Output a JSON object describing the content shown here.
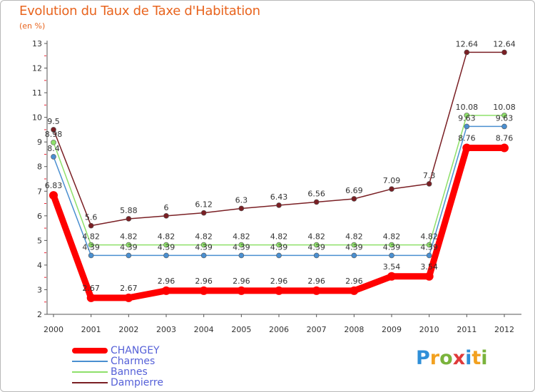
{
  "header": {
    "title": "Evolution du Taux de Taxe d'Habitation",
    "subtitle": "(en %)"
  },
  "logo": {
    "letters": [
      "P",
      "r",
      "o",
      "x",
      "i",
      "t",
      "i"
    ],
    "colors": [
      "#2f8fd8",
      "#f2a120",
      "#7ab33c",
      "#e03a3a",
      "#2f8fd8",
      "#f2a120",
      "#7ab33c"
    ]
  },
  "chart_data": {
    "type": "line",
    "title": "Evolution du Taux de Taxe d'Habitation",
    "ylabel": "(en %)",
    "xlabel": "",
    "x": [
      "2000",
      "2001",
      "2002",
      "2003",
      "2004",
      "2005",
      "2006",
      "2007",
      "2008",
      "2009",
      "2010",
      "2011",
      "2012"
    ],
    "ylim": [
      2,
      13
    ],
    "yticks": [
      "2",
      "3",
      "4",
      "5",
      "6",
      "7",
      "8",
      "9",
      "10",
      "11",
      "12",
      "13"
    ],
    "grid": false,
    "legend_position": "bottom-left",
    "series": [
      {
        "name": "Dampierre",
        "color": "#7a1f24",
        "values": [
          9.5,
          5.6,
          5.88,
          6,
          6.12,
          6.3,
          6.43,
          6.56,
          6.69,
          7.09,
          7.3,
          12.64,
          12.64
        ],
        "labels": [
          "9.5",
          "5.6",
          "5.88",
          "6",
          "6.12",
          "6.3",
          "6.43",
          "6.56",
          "6.69",
          "7.09",
          "7.3",
          "12.64",
          "12.64"
        ]
      },
      {
        "name": "Bannes",
        "color": "#8ee06a",
        "values": [
          8.98,
          4.82,
          4.82,
          4.82,
          4.82,
          4.82,
          4.82,
          4.82,
          4.82,
          4.82,
          4.82,
          10.08,
          10.08
        ],
        "labels": [
          "8.98",
          "4.82",
          "4.82",
          "4.82",
          "4.82",
          "4.82",
          "4.82",
          "4.82",
          "4.82",
          "4.82",
          "4.82",
          "10.08",
          "10.08"
        ]
      },
      {
        "name": "Charmes",
        "color": "#4a8fd0",
        "values": [
          8.4,
          4.39,
          4.39,
          4.39,
          4.39,
          4.39,
          4.39,
          4.39,
          4.39,
          4.39,
          4.39,
          9.63,
          9.63
        ],
        "labels": [
          "8.4",
          "4.39",
          "4.39",
          "4.39",
          "4.39",
          "4.39",
          "4.39",
          "4.39",
          "4.39",
          "4.39",
          "4.39",
          "9.63",
          "9.63"
        ]
      },
      {
        "name": "CHANGEY",
        "color": "#ff0000",
        "values": [
          6.83,
          2.67,
          2.67,
          2.96,
          2.96,
          2.96,
          2.96,
          2.96,
          2.96,
          3.54,
          3.54,
          8.76,
          8.76
        ],
        "labels": [
          "6.83",
          "2.67",
          "2.67",
          "2.96",
          "2.96",
          "2.96",
          "2.96",
          "2.96",
          "2.96",
          "3.54",
          "3.54",
          "8.76",
          "8.76"
        ]
      }
    ],
    "legend": [
      {
        "name": "CHANGEY",
        "color": "#ff0000"
      },
      {
        "name": "Charmes",
        "color": "#4a8fd0"
      },
      {
        "name": "Bannes",
        "color": "#8ee06a"
      },
      {
        "name": "Dampierre",
        "color": "#7a1f24"
      }
    ]
  }
}
